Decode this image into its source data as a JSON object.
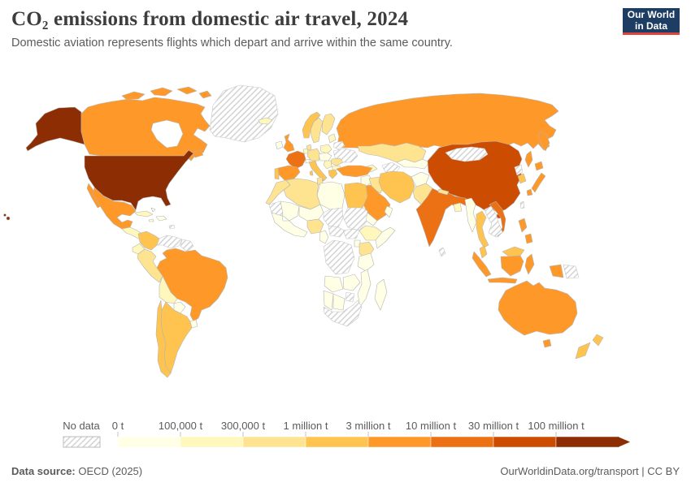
{
  "header": {
    "title": "CO₂ emissions from domestic air travel, 2024",
    "subtitle": "Domestic aviation represents flights which depart and arrive within the same country.",
    "logo": {
      "line1": "Our World",
      "line2": "in Data"
    }
  },
  "legend": {
    "no_data_label": "No data",
    "buckets": [
      {
        "label": "0 t",
        "color": "#ffffe5"
      },
      {
        "label": "100,000 t",
        "color": "#fff7bc"
      },
      {
        "label": "300,000 t",
        "color": "#fee391"
      },
      {
        "label": "1 million t",
        "color": "#fec44f"
      },
      {
        "label": "3 million t",
        "color": "#fe9929"
      },
      {
        "label": "10 million t",
        "color": "#ec7014"
      },
      {
        "label": "30 million t",
        "color": "#cc4c02"
      },
      {
        "label": "100 million t",
        "color": "#8c2d04"
      }
    ]
  },
  "footer": {
    "source_label": "Data source:",
    "source_value": " OECD (2025)",
    "link": "OurWorldinData.org/transport",
    "separator": " | ",
    "license": "CC BY"
  },
  "colors": {
    "logo_bg": "#1d3d63",
    "logo_accent": "#e0423d",
    "country_border": "#b5b5b5",
    "hatch_line": "#cfcfcf",
    "text_gray": "#5b5b5b",
    "title_gray": "#3d3d3d"
  },
  "chart_data": {
    "type": "choropleth",
    "title": "CO₂ emissions from domestic air travel, 2024",
    "unit": "tonnes of CO₂ per year",
    "legend_position": "bottom",
    "scale_type": "log-buckets",
    "scale_labels": [
      "0 t",
      "100,000 t",
      "300,000 t",
      "1 million t",
      "3 million t",
      "10 million t",
      "30 million t",
      "100 million t"
    ],
    "countries": {
      "united-states": "100 million t",
      "china": "30 million t",
      "india": "10 million t",
      "france": "10 million t",
      "vietnam": "10 million t",
      "canada": "3 million t",
      "russia": "3 million t",
      "brazil": "3 million t",
      "mexico": "3 million t",
      "spain": "3 million t",
      "united-kingdom": "3 million t",
      "turkey": "3 million t",
      "saudi-arabia": "3 million t",
      "japan": "3 million t",
      "indonesia": "3 million t",
      "philippines": "3 million t",
      "australia": "3 million t",
      "norway": "1 million t",
      "portugal": "1 million t",
      "italy": "1 million t",
      "greece": "1 million t",
      "colombia": "1 million t",
      "argentina": "1 million t",
      "chile": "1 million t",
      "iran": "1 million t",
      "egypt": "1 million t",
      "thailand": "1 million t",
      "malaysia": "1 million t",
      "south-korea": "1 million t",
      "new-zealand": "1 million t",
      "sweden": "300,000 t",
      "finland": "300,000 t",
      "denmark": "300,000 t",
      "germany": "300,000 t",
      "romania": "300,000 t",
      "kazakhstan": "300,000 t",
      "peru": "300,000 t",
      "iraq": "300,000 t",
      "pakistan": "300,000 t",
      "nepal": "300,000 t",
      "nigeria": "300,000 t",
      "kenya": "300,000 t",
      "morocco": "300,000 t",
      "algeria": "300,000 t",
      "tunisia": "300,000 t",
      "iceland": "100,000 t",
      "poland": "100,000 t",
      "benelux": "100,000 t",
      "baltic-states": "100,000 t",
      "balkans": "100,000 t",
      "bulgaria": "100,000 t",
      "caucasus": "100,000 t",
      "ethiopia": "100,000 t",
      "bolivia": "100,000 t",
      "ecuador": "100,000 t",
      "cuba": "100,000 t",
      "central-america": "100,000 t",
      "bangladesh": "100,000 t",
      "ireland": "0 t",
      "switzerland": "0 t",
      "central-europe": "0 t",
      "syria": "0 t",
      "libya": "0 t",
      "mali": "0 t",
      "niger": "0 t",
      "west-africa": "0 t",
      "cameroon-gabon": "0 t",
      "uganda": "0 t",
      "somalia": "0 t",
      "tanzania": "0 t",
      "angola": "0 t",
      "zambia": "0 t",
      "mozambique": "0 t",
      "namibia": "0 t",
      "botswana": "0 t",
      "madagascar": "0 t",
      "myanmar": "0 t",
      "afghanistan": "0 t",
      "uzbekistan": "0 t",
      "yemen": "0 t",
      "oman": "0 t",
      "paraguay": "0 t",
      "uruguay": "0 t",
      "hispaniola": "0 t",
      "jamaica": "0 t",
      "bahamas": "0 t",
      "greenland": "No data",
      "venezuela": "No data",
      "guyana": "No data",
      "ukraine": "No data",
      "belarus": "No data",
      "mongolia": "No data",
      "turkmenistan": "No data",
      "laos-cambodia": "No data",
      "sri-lanka": "No data",
      "north-korea": "No data",
      "taiwan": "No data",
      "papua-new-guinea": "No data",
      "mauritania": "No data",
      "chad": "No data",
      "sudan": "No data",
      "south-sudan": "No data",
      "central-african-republic": "No data",
      "dr-congo": "No data",
      "zimbabwe": "No data",
      "south-africa": "No data",
      "caribbean-islands": "No data"
    }
  }
}
